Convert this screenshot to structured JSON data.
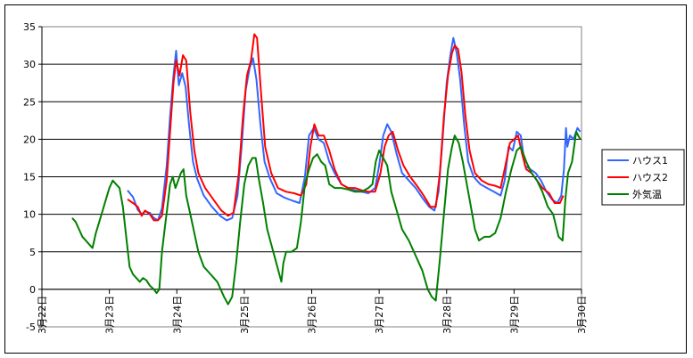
{
  "chart_data": {
    "type": "line",
    "title": "",
    "xlabel": "",
    "ylabel": "",
    "ylim": [
      -5,
      35
    ],
    "yticks": [
      -5,
      0,
      5,
      10,
      15,
      20,
      25,
      30,
      35
    ],
    "xlim": [
      0,
      8
    ],
    "xticks": [
      {
        "x": 0,
        "label": "3月22日"
      },
      {
        "x": 1,
        "label": "3月23日"
      },
      {
        "x": 2,
        "label": "3月24日"
      },
      {
        "x": 3,
        "label": "3月25日"
      },
      {
        "x": 4,
        "label": "3月26日"
      },
      {
        "x": 5,
        "label": "3月27日"
      },
      {
        "x": 6,
        "label": "3月28日"
      },
      {
        "x": 7,
        "label": "3月29日"
      },
      {
        "x": 8,
        "label": "3月30日"
      }
    ],
    "grid": "horizontal",
    "legend_position": "right",
    "series": [
      {
        "name": "ハウス1",
        "color": "#3366ff",
        "points": [
          [
            1.27,
            13.2
          ],
          [
            1.35,
            12.3
          ],
          [
            1.42,
            10.6
          ],
          [
            1.48,
            10.0
          ],
          [
            1.53,
            10.4
          ],
          [
            1.6,
            10.2
          ],
          [
            1.66,
            9.5
          ],
          [
            1.72,
            9.2
          ],
          [
            1.78,
            10.8
          ],
          [
            1.85,
            16.5
          ],
          [
            1.9,
            23.0
          ],
          [
            1.95,
            28.5
          ],
          [
            1.99,
            31.8
          ],
          [
            2.03,
            27.2
          ],
          [
            2.08,
            28.8
          ],
          [
            2.13,
            27.0
          ],
          [
            2.18,
            22.0
          ],
          [
            2.24,
            17.0
          ],
          [
            2.3,
            14.8
          ],
          [
            2.4,
            12.5
          ],
          [
            2.52,
            11.0
          ],
          [
            2.64,
            9.8
          ],
          [
            2.74,
            9.2
          ],
          [
            2.82,
            9.5
          ],
          [
            2.9,
            12.5
          ],
          [
            2.96,
            19.0
          ],
          [
            3.02,
            26.5
          ],
          [
            3.08,
            29.5
          ],
          [
            3.13,
            30.8
          ],
          [
            3.18,
            28.0
          ],
          [
            3.24,
            22.0
          ],
          [
            3.3,
            17.0
          ],
          [
            3.38,
            14.8
          ],
          [
            3.48,
            12.8
          ],
          [
            3.6,
            12.2
          ],
          [
            3.72,
            11.8
          ],
          [
            3.82,
            11.5
          ],
          [
            3.9,
            15.0
          ],
          [
            3.96,
            20.5
          ],
          [
            4.03,
            21.5
          ],
          [
            4.1,
            20.0
          ],
          [
            4.18,
            19.5
          ],
          [
            4.26,
            17.0
          ],
          [
            4.34,
            15.5
          ],
          [
            4.44,
            14.0
          ],
          [
            4.54,
            13.5
          ],
          [
            4.64,
            13.2
          ],
          [
            4.74,
            13.0
          ],
          [
            4.84,
            12.8
          ],
          [
            4.94,
            13.5
          ],
          [
            5.0,
            16.5
          ],
          [
            5.06,
            20.5
          ],
          [
            5.12,
            22.0
          ],
          [
            5.18,
            21.0
          ],
          [
            5.26,
            18.0
          ],
          [
            5.34,
            15.5
          ],
          [
            5.44,
            14.5
          ],
          [
            5.54,
            13.5
          ],
          [
            5.64,
            12.2
          ],
          [
            5.74,
            11.0
          ],
          [
            5.82,
            10.5
          ],
          [
            5.88,
            13.0
          ],
          [
            5.94,
            20.0
          ],
          [
            6.0,
            27.5
          ],
          [
            6.06,
            31.5
          ],
          [
            6.1,
            33.5
          ],
          [
            6.15,
            31.5
          ],
          [
            6.2,
            28.0
          ],
          [
            6.26,
            22.0
          ],
          [
            6.32,
            17.0
          ],
          [
            6.4,
            15.0
          ],
          [
            6.5,
            14.0
          ],
          [
            6.6,
            13.5
          ],
          [
            6.7,
            13.0
          ],
          [
            6.8,
            12.5
          ],
          [
            6.86,
            14.5
          ],
          [
            6.92,
            19.0
          ],
          [
            6.98,
            18.5
          ],
          [
            7.04,
            21.0
          ],
          [
            7.1,
            20.5
          ],
          [
            7.16,
            16.5
          ],
          [
            7.24,
            16.0
          ],
          [
            7.32,
            15.5
          ],
          [
            7.4,
            14.5
          ],
          [
            7.48,
            13.0
          ],
          [
            7.56,
            12.0
          ],
          [
            7.64,
            11.5
          ],
          [
            7.7,
            12.5
          ],
          [
            7.74,
            16.0
          ],
          [
            7.77,
            21.5
          ],
          [
            7.79,
            19.0
          ],
          [
            7.83,
            20.5
          ],
          [
            7.88,
            20.0
          ],
          [
            7.94,
            21.5
          ],
          [
            7.98,
            21.0
          ]
        ]
      },
      {
        "name": "ハウス2",
        "color": "#ff0000",
        "points": [
          [
            1.27,
            12.0
          ],
          [
            1.35,
            11.5
          ],
          [
            1.42,
            11.0
          ],
          [
            1.48,
            9.8
          ],
          [
            1.53,
            10.5
          ],
          [
            1.6,
            10.0
          ],
          [
            1.66,
            9.2
          ],
          [
            1.72,
            9.2
          ],
          [
            1.78,
            9.8
          ],
          [
            1.85,
            14.5
          ],
          [
            1.9,
            21.0
          ],
          [
            1.95,
            27.5
          ],
          [
            1.99,
            30.5
          ],
          [
            2.04,
            28.5
          ],
          [
            2.09,
            31.2
          ],
          [
            2.14,
            30.5
          ],
          [
            2.2,
            23.5
          ],
          [
            2.26,
            18.5
          ],
          [
            2.32,
            15.5
          ],
          [
            2.42,
            13.5
          ],
          [
            2.54,
            12.0
          ],
          [
            2.66,
            10.5
          ],
          [
            2.76,
            9.8
          ],
          [
            2.84,
            10.2
          ],
          [
            2.92,
            15.5
          ],
          [
            2.98,
            23.0
          ],
          [
            3.04,
            28.5
          ],
          [
            3.1,
            30.5
          ],
          [
            3.15,
            34.0
          ],
          [
            3.19,
            33.5
          ],
          [
            3.25,
            26.0
          ],
          [
            3.31,
            19.0
          ],
          [
            3.4,
            15.5
          ],
          [
            3.5,
            13.5
          ],
          [
            3.62,
            13.0
          ],
          [
            3.74,
            12.8
          ],
          [
            3.84,
            12.5
          ],
          [
            3.92,
            14.0
          ],
          [
            3.98,
            19.0
          ],
          [
            4.04,
            22.0
          ],
          [
            4.1,
            20.5
          ],
          [
            4.18,
            20.5
          ],
          [
            4.26,
            18.5
          ],
          [
            4.34,
            16.0
          ],
          [
            4.44,
            14.0
          ],
          [
            4.54,
            13.5
          ],
          [
            4.64,
            13.5
          ],
          [
            4.74,
            13.2
          ],
          [
            4.84,
            13.0
          ],
          [
            4.94,
            13.0
          ],
          [
            5.02,
            15.5
          ],
          [
            5.08,
            19.0
          ],
          [
            5.14,
            20.5
          ],
          [
            5.2,
            21.0
          ],
          [
            5.28,
            18.5
          ],
          [
            5.36,
            16.5
          ],
          [
            5.46,
            15.0
          ],
          [
            5.56,
            13.8
          ],
          [
            5.66,
            12.5
          ],
          [
            5.76,
            11.0
          ],
          [
            5.84,
            11.0
          ],
          [
            5.9,
            15.5
          ],
          [
            5.96,
            23.0
          ],
          [
            6.02,
            28.5
          ],
          [
            6.08,
            31.5
          ],
          [
            6.12,
            32.5
          ],
          [
            6.17,
            32.0
          ],
          [
            6.22,
            29.0
          ],
          [
            6.28,
            23.0
          ],
          [
            6.34,
            18.5
          ],
          [
            6.42,
            15.5
          ],
          [
            6.52,
            14.5
          ],
          [
            6.62,
            14.0
          ],
          [
            6.72,
            13.8
          ],
          [
            6.8,
            13.5
          ],
          [
            6.86,
            16.0
          ],
          [
            6.94,
            19.5
          ],
          [
            7.0,
            20.0
          ],
          [
            7.06,
            20.5
          ],
          [
            7.12,
            18.0
          ],
          [
            7.18,
            16.0
          ],
          [
            7.26,
            15.5
          ],
          [
            7.34,
            14.5
          ],
          [
            7.42,
            13.5
          ],
          [
            7.52,
            12.8
          ],
          [
            7.6,
            11.5
          ],
          [
            7.68,
            11.5
          ],
          [
            7.73,
            12.5
          ]
        ]
      },
      {
        "name": "外気温",
        "color": "#008000",
        "points": [
          [
            0.45,
            9.5
          ],
          [
            0.5,
            9.0
          ],
          [
            0.55,
            8.0
          ],
          [
            0.6,
            7.0
          ],
          [
            0.65,
            6.5
          ],
          [
            0.7,
            6.0
          ],
          [
            0.75,
            5.5
          ],
          [
            0.8,
            7.5
          ],
          [
            0.85,
            9.0
          ],
          [
            0.9,
            10.5
          ],
          [
            0.95,
            12.0
          ],
          [
            1.0,
            13.5
          ],
          [
            1.05,
            14.5
          ],
          [
            1.1,
            14.0
          ],
          [
            1.15,
            13.5
          ],
          [
            1.2,
            11.0
          ],
          [
            1.25,
            7.0
          ],
          [
            1.3,
            3.0
          ],
          [
            1.35,
            2.0
          ],
          [
            1.4,
            1.5
          ],
          [
            1.45,
            1.0
          ],
          [
            1.5,
            1.5
          ],
          [
            1.55,
            1.2
          ],
          [
            1.6,
            0.5
          ],
          [
            1.66,
            0.0
          ],
          [
            1.7,
            -0.5
          ],
          [
            1.74,
            0.0
          ],
          [
            1.78,
            5.0
          ],
          [
            1.82,
            8.0
          ],
          [
            1.86,
            11.0
          ],
          [
            1.9,
            14.0
          ],
          [
            1.94,
            15.0
          ],
          [
            1.98,
            13.5
          ],
          [
            2.02,
            14.5
          ],
          [
            2.06,
            15.5
          ],
          [
            2.1,
            16.0
          ],
          [
            2.14,
            12.5
          ],
          [
            2.2,
            10.0
          ],
          [
            2.26,
            7.5
          ],
          [
            2.32,
            5.0
          ],
          [
            2.4,
            3.0
          ],
          [
            2.5,
            2.0
          ],
          [
            2.6,
            1.0
          ],
          [
            2.7,
            -1.0
          ],
          [
            2.76,
            -2.0
          ],
          [
            2.82,
            -1.0
          ],
          [
            2.88,
            3.5
          ],
          [
            2.94,
            9.0
          ],
          [
            3.0,
            14.0
          ],
          [
            3.06,
            16.5
          ],
          [
            3.12,
            17.5
          ],
          [
            3.17,
            17.5
          ],
          [
            3.22,
            14.5
          ],
          [
            3.28,
            11.5
          ],
          [
            3.34,
            8.0
          ],
          [
            3.4,
            6.0
          ],
          [
            3.46,
            4.0
          ],
          [
            3.52,
            2.0
          ],
          [
            3.55,
            1.0
          ],
          [
            3.58,
            3.5
          ],
          [
            3.62,
            5.0
          ],
          [
            3.7,
            5.0
          ],
          [
            3.78,
            5.5
          ],
          [
            3.84,
            9.0
          ],
          [
            3.9,
            14.0
          ],
          [
            3.96,
            16.0
          ],
          [
            4.02,
            17.5
          ],
          [
            4.08,
            18.0
          ],
          [
            4.14,
            17.0
          ],
          [
            4.2,
            16.5
          ],
          [
            4.26,
            14.0
          ],
          [
            4.34,
            13.5
          ],
          [
            4.44,
            13.5
          ],
          [
            4.54,
            13.3
          ],
          [
            4.64,
            13.0
          ],
          [
            4.74,
            13.0
          ],
          [
            4.84,
            13.5
          ],
          [
            4.9,
            14.0
          ],
          [
            4.95,
            17.0
          ],
          [
            5.0,
            18.5
          ],
          [
            5.06,
            17.5
          ],
          [
            5.12,
            16.5
          ],
          [
            5.18,
            13.0
          ],
          [
            5.26,
            10.5
          ],
          [
            5.34,
            8.0
          ],
          [
            5.44,
            6.5
          ],
          [
            5.54,
            4.5
          ],
          [
            5.64,
            2.5
          ],
          [
            5.72,
            0.0
          ],
          [
            5.78,
            -1.0
          ],
          [
            5.84,
            -1.5
          ],
          [
            5.9,
            4.0
          ],
          [
            5.96,
            10.0
          ],
          [
            6.02,
            16.0
          ],
          [
            6.08,
            19.0
          ],
          [
            6.12,
            20.5
          ],
          [
            6.18,
            19.5
          ],
          [
            6.24,
            17.0
          ],
          [
            6.3,
            14.0
          ],
          [
            6.36,
            11.0
          ],
          [
            6.42,
            8.0
          ],
          [
            6.48,
            6.5
          ],
          [
            6.56,
            7.0
          ],
          [
            6.64,
            7.0
          ],
          [
            6.72,
            7.5
          ],
          [
            6.8,
            9.5
          ],
          [
            6.88,
            13.0
          ],
          [
            6.96,
            16.0
          ],
          [
            7.04,
            18.5
          ],
          [
            7.1,
            19.0
          ],
          [
            7.18,
            17.0
          ],
          [
            7.26,
            15.5
          ],
          [
            7.34,
            14.5
          ],
          [
            7.42,
            13.0
          ],
          [
            7.5,
            11.0
          ],
          [
            7.58,
            10.0
          ],
          [
            7.66,
            7.0
          ],
          [
            7.72,
            6.5
          ],
          [
            7.76,
            12.0
          ],
          [
            7.8,
            15.5
          ],
          [
            7.86,
            17.0
          ],
          [
            7.92,
            21.0
          ],
          [
            7.98,
            20.0
          ]
        ]
      }
    ]
  }
}
